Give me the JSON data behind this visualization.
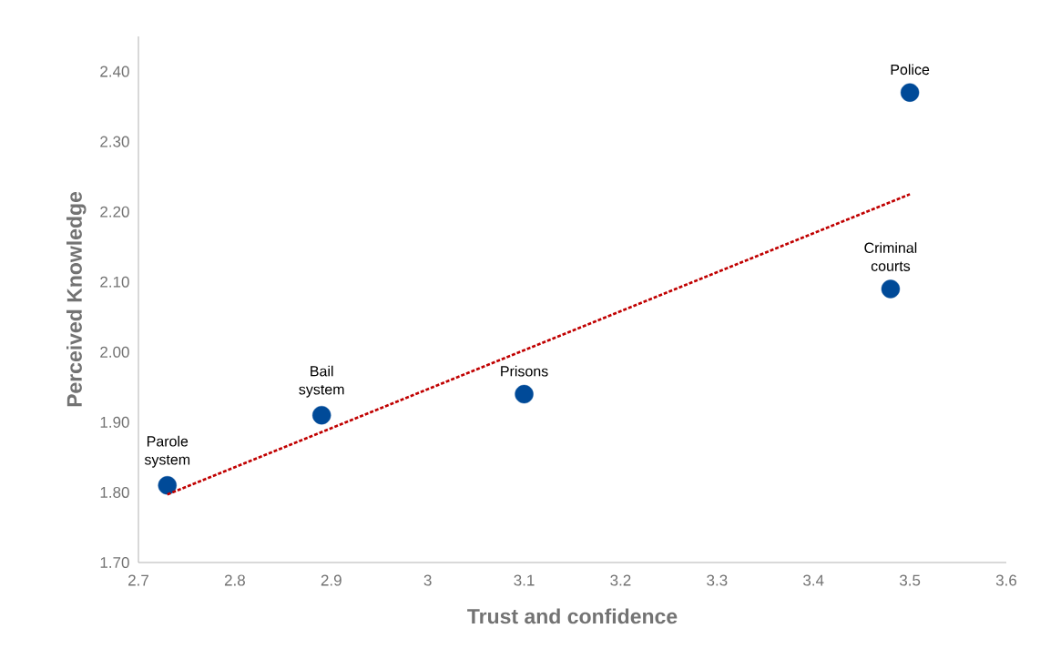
{
  "chart_data": {
    "type": "scatter",
    "xlabel": "Trust and confidence",
    "ylabel": "Perceived Knowledge",
    "xlim": [
      2.7,
      3.6
    ],
    "ylim": [
      1.7,
      2.45
    ],
    "xticks": [
      {
        "value": 2.7,
        "label": "2.7"
      },
      {
        "value": 2.8,
        "label": "2.8"
      },
      {
        "value": 2.9,
        "label": "2.9"
      },
      3,
      {
        "value": 3.1,
        "label": "3.1"
      },
      {
        "value": 3.2,
        "label": "3.2"
      },
      {
        "value": 3.3,
        "label": "3.3"
      },
      {
        "value": 3.4,
        "label": "3.4"
      },
      {
        "value": 3.5,
        "label": "3.5"
      },
      {
        "value": 3.6,
        "label": "3.6"
      }
    ],
    "yticks": [
      {
        "value": 1.7,
        "label": "1.70"
      },
      {
        "value": 1.8,
        "label": "1.80"
      },
      {
        "value": 1.9,
        "label": "1.90"
      },
      {
        "value": 2.0,
        "label": "2.00"
      },
      {
        "value": 2.1,
        "label": "2.10"
      },
      {
        "value": 2.2,
        "label": "2.20"
      },
      {
        "value": 2.3,
        "label": "2.30"
      },
      {
        "value": 2.4,
        "label": "2.40"
      }
    ],
    "grid": false,
    "marker": "circle",
    "series": [
      {
        "color": "#004a98",
        "x": [
          2.73,
          2.89,
          3.1,
          3.48,
          3.5
        ],
        "values": [
          1.81,
          1.91,
          1.94,
          2.09,
          2.37
        ]
      },
      {
        "type": "line",
        "color": "#c00000",
        "line_style": "dashed",
        "marker": "none",
        "x": [
          2.73,
          3.5
        ],
        "values": [
          1.797,
          2.225
        ]
      }
    ],
    "annotations": [
      {
        "text": "Parole system",
        "x": 2.73,
        "y": 1.81
      },
      {
        "text": "Bail system",
        "x": 2.89,
        "y": 1.91
      },
      {
        "text": "Prisons",
        "x": 3.1,
        "y": 1.94
      },
      {
        "text": "Criminal courts",
        "x": 3.48,
        "y": 2.09
      },
      {
        "text": "Police",
        "x": 3.5,
        "y": 2.37
      }
    ]
  }
}
